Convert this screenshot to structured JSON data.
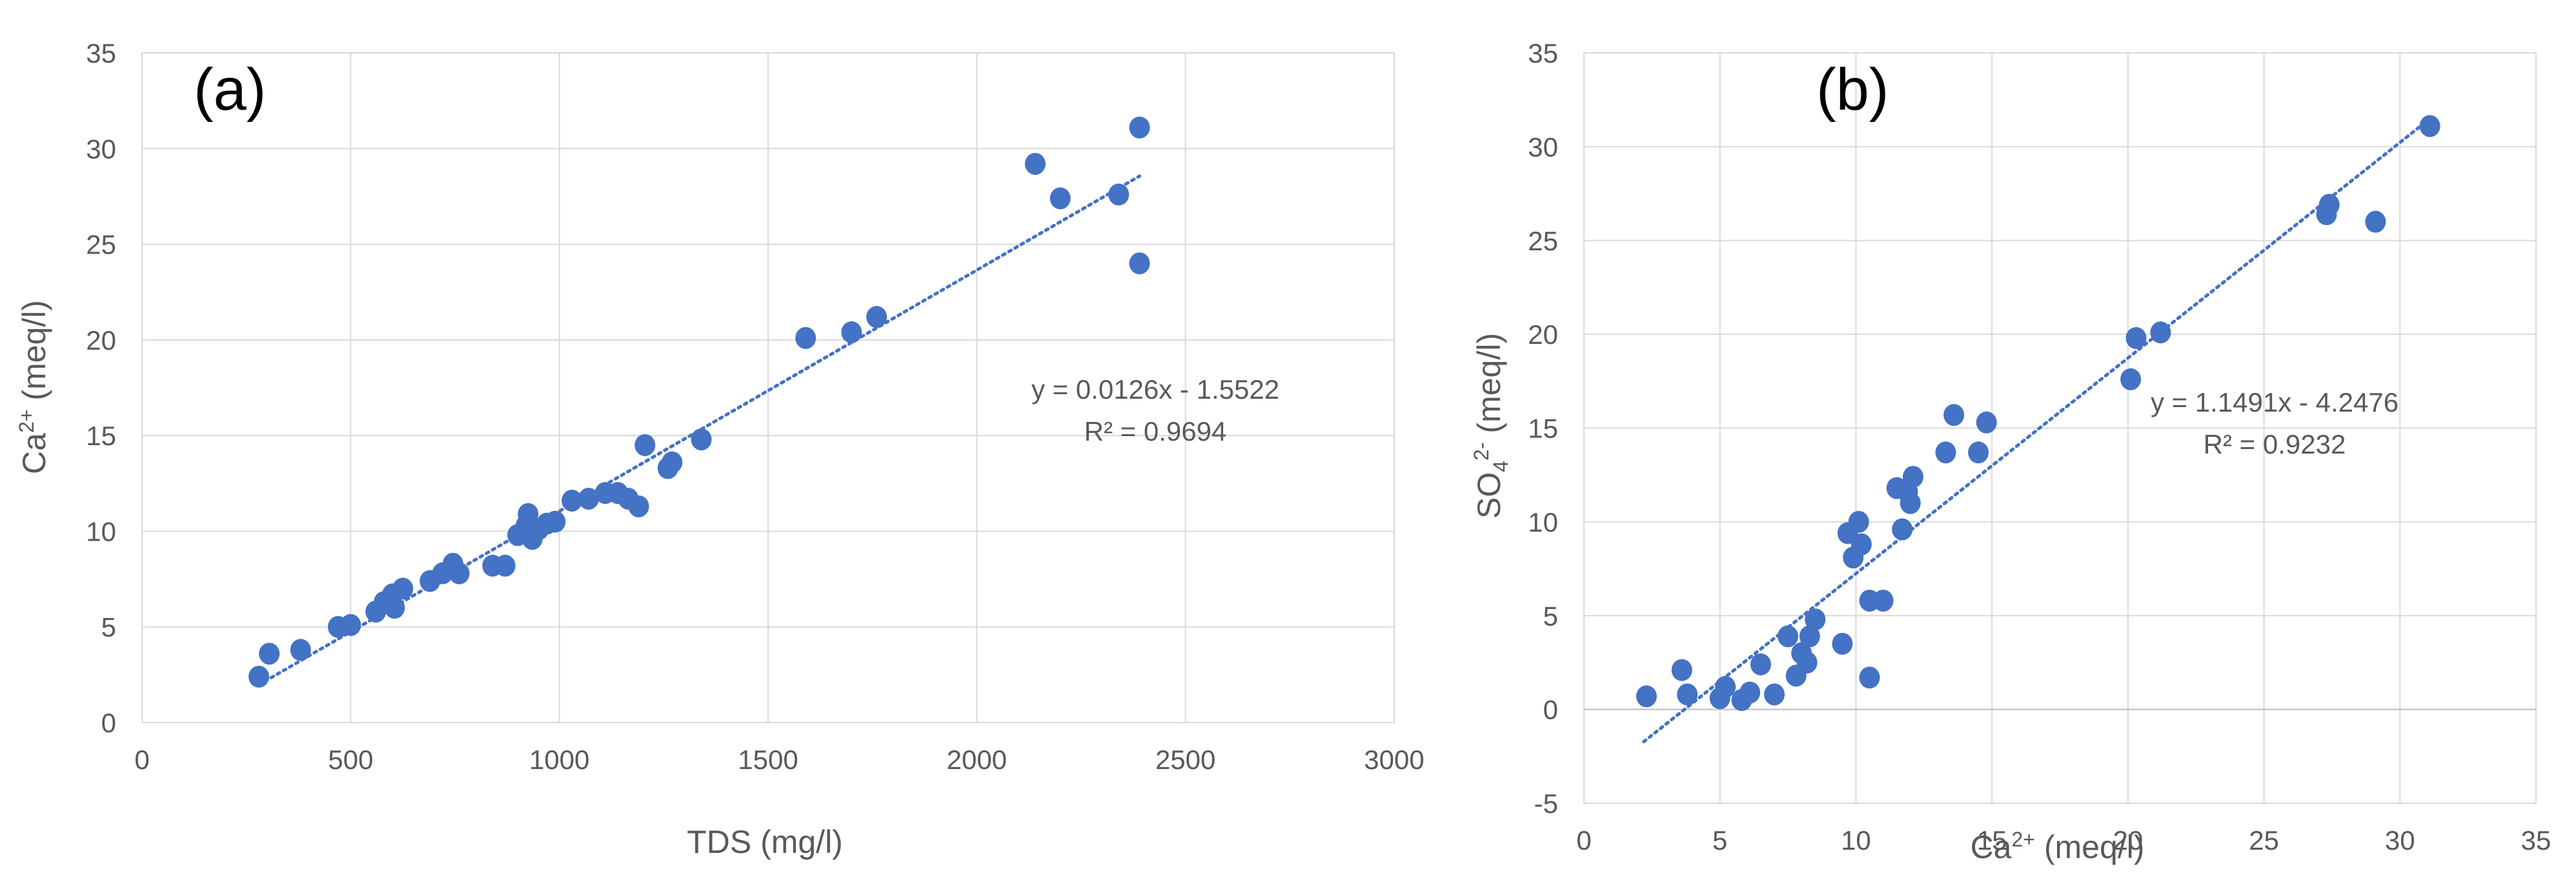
{
  "chart_data": [
    {
      "type": "scatter",
      "panel_label": "(a)",
      "xlabel": "TDS (mg/l)",
      "ylabel": "Ca2+ (meq/l)",
      "xlim": [
        0,
        3000
      ],
      "ylim": [
        0,
        35
      ],
      "xticks": [
        0,
        500,
        1000,
        1500,
        2000,
        2500,
        3000
      ],
      "yticks": [
        0,
        5,
        10,
        15,
        20,
        25,
        30,
        35
      ],
      "grid": true,
      "marker_color": "#4472c4",
      "trendline": {
        "slope": 0.0126,
        "intercept": -1.5522,
        "x_range": [
          280,
          2390
        ],
        "equation": "y = 0.0126x - 1.5522",
        "r2": "R² = 0.9694"
      },
      "points": [
        [
          280,
          2.4
        ],
        [
          305,
          3.6
        ],
        [
          380,
          3.8
        ],
        [
          470,
          5.0
        ],
        [
          500,
          5.1
        ],
        [
          560,
          5.8
        ],
        [
          580,
          6.3
        ],
        [
          600,
          6.7
        ],
        [
          605,
          6.0
        ],
        [
          625,
          7.0
        ],
        [
          690,
          7.4
        ],
        [
          720,
          7.8
        ],
        [
          745,
          8.3
        ],
        [
          760,
          7.8
        ],
        [
          840,
          8.2
        ],
        [
          870,
          8.2
        ],
        [
          900,
          9.8
        ],
        [
          920,
          10.3
        ],
        [
          925,
          10.9
        ],
        [
          935,
          9.6
        ],
        [
          950,
          10.1
        ],
        [
          970,
          10.4
        ],
        [
          990,
          10.5
        ],
        [
          1030,
          11.6
        ],
        [
          1070,
          11.7
        ],
        [
          1110,
          12.0
        ],
        [
          1140,
          12.0
        ],
        [
          1165,
          11.7
        ],
        [
          1190,
          11.3
        ],
        [
          1205,
          14.5
        ],
        [
          1260,
          13.3
        ],
        [
          1270,
          13.6
        ],
        [
          1340,
          14.8
        ],
        [
          1590,
          20.1
        ],
        [
          1700,
          20.4
        ],
        [
          1760,
          21.2
        ],
        [
          2140,
          29.2
        ],
        [
          2200,
          27.4
        ],
        [
          2340,
          27.6
        ],
        [
          2390,
          31.1
        ],
        [
          2390,
          24.0
        ]
      ]
    },
    {
      "type": "scatter",
      "panel_label": "(b)",
      "xlabel": "Ca2+ (meq/l)",
      "ylabel": "SO42- (meq/l)",
      "xlim": [
        0,
        35
      ],
      "ylim": [
        -5,
        35
      ],
      "xticks": [
        0,
        5,
        10,
        15,
        20,
        25,
        30,
        35
      ],
      "yticks": [
        -5,
        0,
        5,
        10,
        15,
        20,
        25,
        30,
        35
      ],
      "grid": true,
      "marker_color": "#4472c4",
      "trendline": {
        "slope": 1.1491,
        "intercept": -4.2476,
        "x_range": [
          2.2,
          31.1
        ],
        "equation": "y = 1.1491x - 4.2476",
        "r2": "R² = 0.9232"
      },
      "points": [
        [
          2.3,
          0.7
        ],
        [
          3.6,
          2.1
        ],
        [
          3.8,
          0.8
        ],
        [
          5.0,
          0.6
        ],
        [
          5.2,
          1.2
        ],
        [
          5.8,
          0.5
        ],
        [
          6.1,
          0.9
        ],
        [
          6.5,
          2.4
        ],
        [
          7.0,
          0.8
        ],
        [
          7.5,
          3.9
        ],
        [
          7.8,
          1.8
        ],
        [
          8.0,
          3.0
        ],
        [
          8.2,
          2.5
        ],
        [
          8.3,
          3.9
        ],
        [
          8.5,
          4.8
        ],
        [
          9.5,
          3.5
        ],
        [
          9.7,
          9.4
        ],
        [
          9.9,
          8.1
        ],
        [
          10.1,
          10.0
        ],
        [
          10.2,
          8.8
        ],
        [
          10.5,
          5.8
        ],
        [
          10.5,
          1.7
        ],
        [
          11.0,
          5.8
        ],
        [
          11.5,
          11.8
        ],
        [
          11.7,
          9.6
        ],
        [
          11.9,
          11.6
        ],
        [
          12.0,
          11.0
        ],
        [
          12.1,
          12.4
        ],
        [
          13.3,
          13.7
        ],
        [
          13.6,
          15.7
        ],
        [
          14.5,
          13.7
        ],
        [
          14.8,
          15.3
        ],
        [
          20.1,
          17.6
        ],
        [
          20.3,
          19.8
        ],
        [
          21.2,
          20.1
        ],
        [
          27.3,
          26.4
        ],
        [
          27.4,
          26.9
        ],
        [
          29.1,
          26.0
        ],
        [
          31.1,
          31.1
        ]
      ]
    }
  ]
}
